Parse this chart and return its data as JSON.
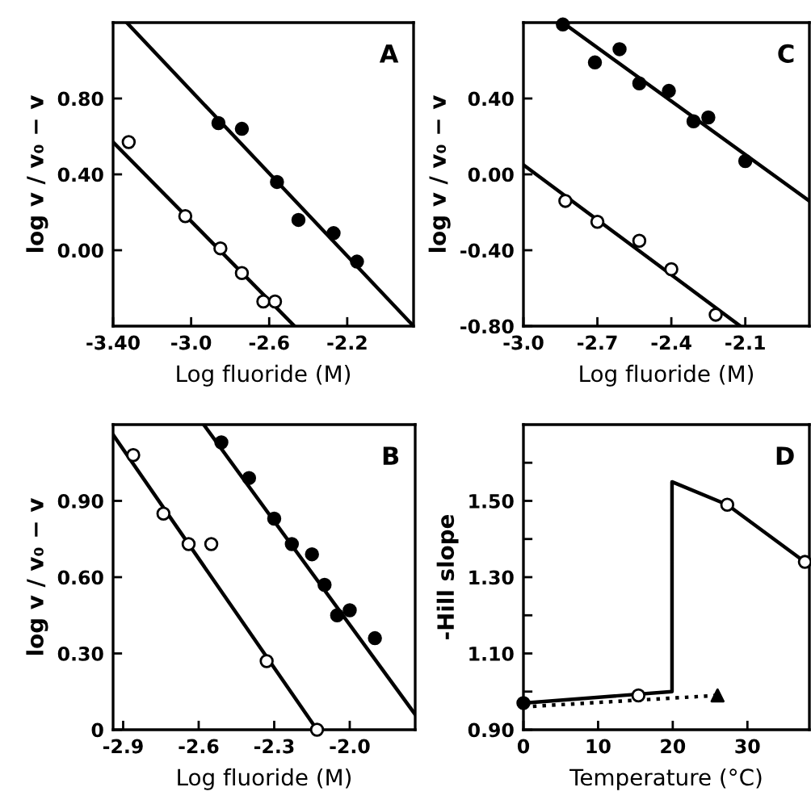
{
  "chart_data": [
    {
      "type": "scatter",
      "xlabel": "Log fluoride (M)",
      "ylabel": "log v / v₀ − v",
      "annotations": [
        "A"
      ],
      "xlim": [
        -3.4,
        -1.86
      ],
      "ylim": [
        -0.4,
        1.2
      ],
      "xticks": [
        {
          "value": -3.4,
          "label": "-3.40"
        },
        {
          "value": -3.0,
          "label": "-3.0"
        },
        {
          "value": -2.6,
          "label": "-2.6"
        },
        {
          "value": -2.2,
          "label": "-2.2"
        }
      ],
      "yticks": [
        {
          "value": 0.0,
          "label": "0.00"
        },
        {
          "value": 0.4,
          "label": "0.40"
        },
        {
          "value": 0.8,
          "label": "0.80"
        }
      ],
      "grid": false,
      "series": [
        {
          "color": "#000000",
          "marker": "circle",
          "x": [
            -2.86,
            -2.74,
            -2.56,
            -2.45,
            -2.27,
            -2.15
          ],
          "values": [
            0.67,
            0.64,
            0.36,
            0.16,
            0.09,
            -0.06
          ]
        },
        {
          "color": "#ffffff",
          "marker": "circle",
          "x": [
            -3.32,
            -3.03,
            -2.85,
            -2.74,
            -2.63,
            -2.57
          ],
          "values": [
            0.57,
            0.18,
            0.01,
            -0.12,
            -0.27,
            -0.27
          ]
        },
        {
          "type": "line",
          "color": "#000000",
          "x": [
            -3.33,
            -1.86
          ],
          "values": [
            1.2,
            -0.4
          ]
        },
        {
          "type": "line",
          "color": "#000000",
          "x": [
            -3.4,
            -2.47
          ],
          "values": [
            0.57,
            -0.4
          ]
        }
      ]
    },
    {
      "type": "scatter",
      "xlabel": "Log fluoride (M)",
      "ylabel": "log v / v₀ − v",
      "annotations": [
        "C"
      ],
      "xlim": [
        -3.0,
        -1.84
      ],
      "ylim": [
        -0.8,
        0.8
      ],
      "xticks": [
        {
          "value": -3.0,
          "label": "-3.0"
        },
        {
          "value": -2.7,
          "label": "-2.7"
        },
        {
          "value": -2.4,
          "label": "-2.4"
        },
        {
          "value": -2.1,
          "label": "-2.1"
        }
      ],
      "yticks": [
        {
          "value": -0.8,
          "label": "-0.80"
        },
        {
          "value": -0.4,
          "label": "-0.40"
        },
        {
          "value": 0.0,
          "label": "0.00"
        },
        {
          "value": 0.4,
          "label": "0.40"
        }
      ],
      "grid": false,
      "series": [
        {
          "color": "#000000",
          "marker": "circle",
          "x": [
            -2.84,
            -2.71,
            -2.61,
            -2.53,
            -2.41,
            -2.31,
            -2.25,
            -2.1
          ],
          "values": [
            0.79,
            0.59,
            0.66,
            0.48,
            0.44,
            0.28,
            0.3,
            0.07
          ]
        },
        {
          "color": "#ffffff",
          "marker": "circle",
          "x": [
            -2.83,
            -2.7,
            -2.53,
            -2.4,
            -2.22
          ],
          "values": [
            -0.14,
            -0.25,
            -0.35,
            -0.5,
            -0.74
          ]
        },
        {
          "type": "line",
          "color": "#000000",
          "x": [
            -2.83,
            -1.84
          ],
          "values": [
            0.79,
            -0.14
          ]
        },
        {
          "type": "line",
          "color": "#000000",
          "x": [
            -3.0,
            -2.12
          ],
          "values": [
            0.05,
            -0.8
          ]
        }
      ]
    },
    {
      "type": "scatter",
      "xlabel": "Log fluoride (M)",
      "ylabel": "log v / v₀ − v",
      "annotations": [
        "B"
      ],
      "xlim": [
        -2.94,
        -1.74
      ],
      "ylim": [
        0,
        1.2
      ],
      "xticks": [
        {
          "value": -2.9,
          "label": "-2.9"
        },
        {
          "value": -2.6,
          "label": "-2.6"
        },
        {
          "value": -2.3,
          "label": "-2.3"
        },
        {
          "value": -2.0,
          "label": "-2.0"
        }
      ],
      "yticks": [
        0,
        {
          "value": 0.3,
          "label": "0.30"
        },
        {
          "value": 0.6,
          "label": "0.60"
        },
        {
          "value": 0.9,
          "label": "0.90"
        }
      ],
      "grid": false,
      "series": [
        {
          "color": "#000000",
          "marker": "circle",
          "x": [
            -2.51,
            -2.4,
            -2.3,
            -2.23,
            -2.15,
            -2.1,
            -2.05,
            -2.0,
            -1.9
          ],
          "values": [
            1.13,
            0.99,
            0.83,
            0.73,
            0.69,
            0.57,
            0.45,
            0.47,
            0.36
          ]
        },
        {
          "color": "#ffffff",
          "marker": "circle",
          "x": [
            -2.86,
            -2.74,
            -2.64,
            -2.55,
            -2.33,
            -2.13
          ],
          "values": [
            1.08,
            0.85,
            0.73,
            0.73,
            0.27,
            0.0
          ]
        },
        {
          "type": "line",
          "color": "#000000",
          "x": [
            -2.58,
            -1.74
          ],
          "values": [
            1.2,
            0.06
          ]
        },
        {
          "type": "line",
          "color": "#000000",
          "x": [
            -2.94,
            -2.13
          ],
          "values": [
            1.16,
            0.0
          ]
        }
      ]
    },
    {
      "type": "line",
      "xlabel": "Temperature (°C)",
      "ylabel": "-Hill slope",
      "annotations": [
        "D"
      ],
      "xlim": [
        0,
        38.3
      ],
      "ylim": [
        0.9,
        1.7
      ],
      "xticks": [
        0,
        10,
        20,
        30
      ],
      "yticks": [
        {
          "value": 0.9,
          "label": "0.90"
        },
        {
          "value": 1.0,
          "label": null
        },
        {
          "value": 1.1,
          "label": "1.10"
        },
        {
          "value": 1.2,
          "label": null
        },
        {
          "value": 1.3,
          "label": "1.30"
        },
        {
          "value": 1.4,
          "label": null
        },
        {
          "value": 1.5,
          "label": "1.50"
        },
        {
          "value": 1.6,
          "label": null
        }
      ],
      "grid": false,
      "series": [
        {
          "color": "#000000",
          "line_style": "solid",
          "x": [
            0,
            19.9,
            19.9,
            27.3,
            37.7
          ],
          "values": [
            0.97,
            1.0,
            1.55,
            1.49,
            1.34
          ]
        },
        {
          "color": "#000000",
          "line_style": "dotted",
          "x": [
            0,
            26
          ],
          "values": [
            0.96,
            0.99
          ]
        },
        {
          "type": "scatter",
          "color": "#ffffff",
          "marker": "circle",
          "x": [
            15.4,
            27.3,
            37.7
          ],
          "values": [
            0.99,
            1.49,
            1.34
          ]
        },
        {
          "type": "scatter",
          "color": "#000000",
          "marker": "circle",
          "x": [
            0
          ],
          "values": [
            0.97
          ]
        },
        {
          "type": "scatter",
          "color": "#000000",
          "marker": "triangle",
          "x": [
            26
          ],
          "values": [
            0.99
          ]
        }
      ]
    }
  ]
}
